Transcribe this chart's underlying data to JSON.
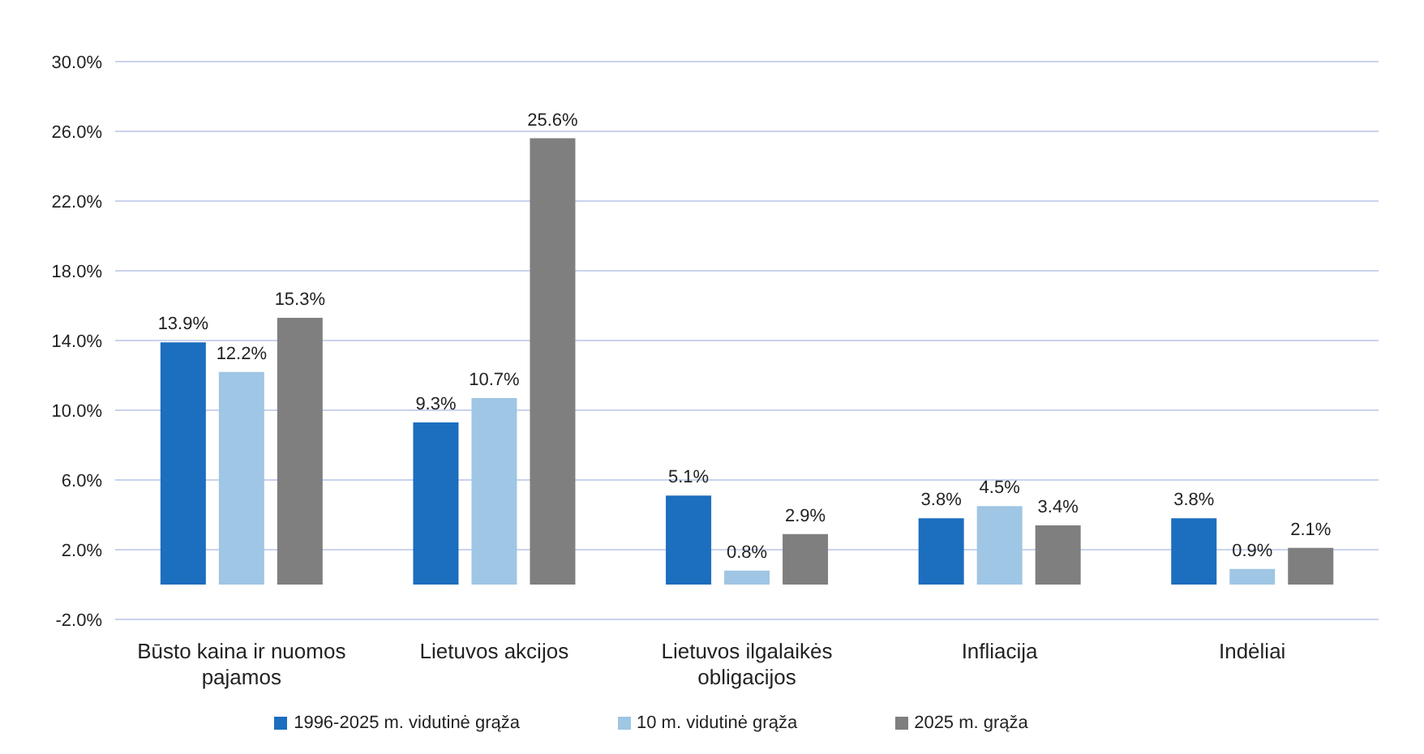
{
  "chart_data": {
    "type": "bar",
    "categories": [
      "Būsto kaina ir nuomos pajamos",
      "Lietuvos akcijos",
      "Lietuvos ilgalaikės obligacijos",
      "Infliacija",
      "Indėliai"
    ],
    "series": [
      {
        "name": "1996-2025 m. vidutinė grąža",
        "color": "#1c6ebf",
        "values": [
          13.9,
          9.3,
          5.1,
          3.8,
          3.8
        ],
        "value_labels": [
          "13.9%",
          "9.3%",
          "5.1%",
          "3.8%",
          "3.8%"
        ]
      },
      {
        "name": "10 m. vidutinė grąža",
        "color": "#9fc6e4",
        "values": [
          12.2,
          10.7,
          0.8,
          4.5,
          0.9
        ],
        "value_labels": [
          "12.2%",
          "10.7%",
          "0.8%",
          "4.5%",
          "0.9%"
        ]
      },
      {
        "name": "2025 m. grąža",
        "color": "#7f7f7f",
        "values": [
          15.3,
          25.6,
          2.9,
          3.4,
          2.1
        ],
        "value_labels": [
          "15.3%",
          "25.6%",
          "2.9%",
          "3.4%",
          "2.1%"
        ]
      }
    ],
    "ylim": [
      -2,
      30
    ],
    "yticks": [
      {
        "value": -2,
        "label": "-2.0%"
      },
      {
        "value": 2,
        "label": "2.0%"
      },
      {
        "value": 6,
        "label": "6.0%"
      },
      {
        "value": 10,
        "label": "10.0%"
      },
      {
        "value": 14,
        "label": "14.0%"
      },
      {
        "value": 18,
        "label": "18.0%"
      },
      {
        "value": 22,
        "label": "22.0%"
      },
      {
        "value": 26,
        "label": "26.0%"
      },
      {
        "value": 30,
        "label": "30.0%"
      }
    ],
    "grid": "y",
    "legend": "bottom"
  }
}
